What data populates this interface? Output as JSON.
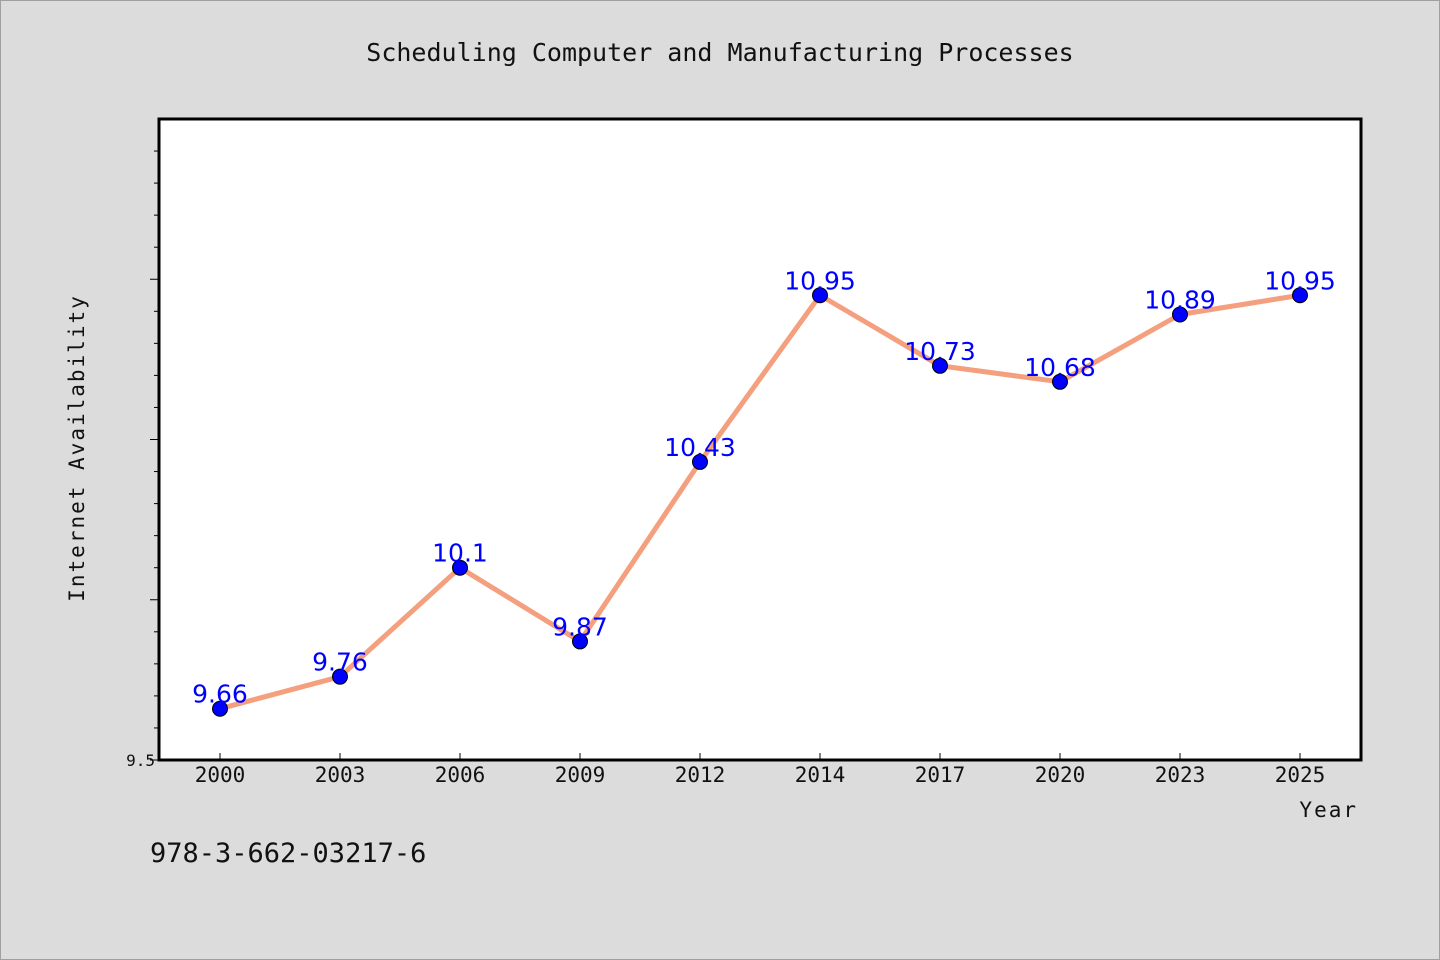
{
  "chart_data": {
    "type": "line",
    "title": "Scheduling Computer and Manufacturing Processes",
    "xlabel": "Year",
    "ylabel": "Internet Availability",
    "categories": [
      "2000",
      "2003",
      "2006",
      "2009",
      "2012",
      "2014",
      "2017",
      "2020",
      "2023",
      "2025"
    ],
    "series": [
      {
        "values": [
          9.66,
          9.76,
          10.1,
          9.87,
          10.43,
          10.95,
          10.73,
          10.68,
          10.89,
          10.95
        ],
        "labels": [
          "9.66",
          "9.76",
          "10.1",
          "9.87",
          "10.43",
          "10.95",
          "10.73",
          "10.68",
          "10.89",
          "10.95"
        ],
        "line_color": "#f4a07e",
        "marker_color": "#0000ff"
      }
    ],
    "ylim": [
      9.5,
      11.5
    ],
    "yticks_labeled": [
      "9.5"
    ],
    "grid": false,
    "legend": "none",
    "data_label_color": "#0000ff"
  },
  "footnote": "978-3-662-03217-6"
}
